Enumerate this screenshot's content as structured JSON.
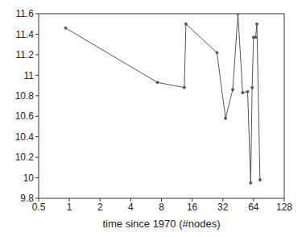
{
  "chart_data": {
    "type": "line",
    "x_label": "time since 1970 (#nodes)",
    "x": [
      0.92,
      7.3,
      13.4,
      13.9,
      28,
      34,
      40,
      45,
      50,
      56,
      60,
      62,
      64,
      67,
      69,
      74
    ],
    "values": [
      11.46,
      10.93,
      10.88,
      11.5,
      11.22,
      10.58,
      10.86,
      11.6,
      10.83,
      10.84,
      9.95,
      10.88,
      11.37,
      11.37,
      11.5,
      9.98
    ],
    "color": "#555555",
    "marker": "circle",
    "log": "x",
    "xlim": [
      0.5,
      128
    ],
    "xticks": [
      0.5,
      1,
      2,
      4,
      8,
      16,
      32,
      64,
      128
    ],
    "ylim": [
      9.8,
      11.6
    ],
    "yticks": [
      9.8,
      10,
      10.2,
      10.4,
      10.6,
      10.8,
      11,
      11.2,
      11.4,
      11.6
    ],
    "grid": false
  }
}
